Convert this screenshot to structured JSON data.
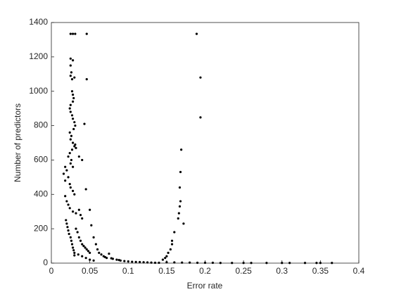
{
  "chart_data": {
    "type": "scatter",
    "xlabel": "Error rate",
    "ylabel": "Number of predictors",
    "color": "#000000",
    "xlim": [
      0,
      0.4
    ],
    "ylim": [
      0,
      1400
    ],
    "xticks": [
      0,
      0.05,
      0.1,
      0.15,
      0.2,
      0.25,
      0.3,
      0.35,
      0.4
    ],
    "yticks": [
      0,
      200,
      400,
      600,
      800,
      1000,
      1200,
      1400
    ],
    "x": [
      0.025,
      0.028,
      0.031,
      0.046,
      0.189,
      0.194,
      0.194,
      0.025,
      0.025,
      0.026,
      0.025,
      0.027,
      0.028,
      0.03,
      0.046,
      0.027,
      0.028,
      0.029,
      0.028,
      0.025,
      0.024,
      0.025,
      0.027,
      0.028,
      0.03,
      0.031,
      0.043,
      0.029,
      0.024,
      0.026,
      0.025,
      0.028,
      0.03,
      0.031,
      0.032,
      0.027,
      0.024,
      0.022,
      0.026,
      0.036,
      0.04,
      0.025,
      0.028,
      0.018,
      0.02,
      0.016,
      0.022,
      0.018,
      0.024,
      0.025,
      0.028,
      0.03,
      0.045,
      0.018,
      0.02,
      0.022,
      0.024,
      0.028,
      0.032,
      0.036,
      0.05,
      0.038,
      0.04,
      0.019,
      0.02,
      0.021,
      0.022,
      0.023,
      0.025,
      0.026,
      0.027,
      0.028,
      0.029,
      0.03,
      0.032,
      0.034,
      0.036,
      0.038,
      0.04,
      0.042,
      0.044,
      0.046,
      0.048,
      0.05,
      0.052,
      0.055,
      0.058,
      0.06,
      0.062,
      0.065,
      0.068,
      0.07,
      0.072,
      0.075,
      0.078,
      0.08,
      0.085,
      0.088,
      0.09,
      0.095,
      0.1,
      0.105,
      0.11,
      0.115,
      0.12,
      0.125,
      0.13,
      0.135,
      0.14,
      0.145,
      0.148,
      0.15,
      0.152,
      0.155,
      0.157,
      0.157,
      0.16,
      0.165,
      0.166,
      0.167,
      0.168,
      0.167,
      0.168,
      0.169,
      0.172,
      0.15,
      0.16,
      0.17,
      0.18,
      0.19,
      0.2,
      0.21,
      0.22,
      0.235,
      0.25,
      0.26,
      0.28,
      0.3,
      0.31,
      0.33,
      0.345,
      0.35,
      0.365,
      0.04,
      0.045,
      0.05,
      0.055,
      0.035,
      0.03
    ],
    "y": [
      1334,
      1334,
      1334,
      1334,
      1334,
      1080,
      848,
      1190,
      1150,
      1110,
      1090,
      1070,
      1180,
      1080,
      1070,
      1000,
      980,
      960,
      940,
      920,
      900,
      880,
      860,
      840,
      820,
      800,
      810,
      780,
      760,
      740,
      720,
      700,
      680,
      690,
      670,
      660,
      640,
      620,
      600,
      620,
      600,
      580,
      560,
      560,
      540,
      520,
      500,
      480,
      460,
      440,
      420,
      400,
      430,
      390,
      360,
      340,
      320,
      300,
      290,
      310,
      310,
      280,
      260,
      250,
      230,
      210,
      190,
      170,
      150,
      130,
      110,
      90,
      75,
      60,
      200,
      180,
      150,
      130,
      110,
      100,
      90,
      80,
      70,
      60,
      220,
      150,
      110,
      80,
      60,
      50,
      40,
      35,
      30,
      55,
      28,
      25,
      20,
      18,
      15,
      12,
      10,
      8,
      7,
      6,
      5,
      4,
      3,
      2,
      2,
      20,
      30,
      40,
      60,
      80,
      110,
      130,
      180,
      260,
      290,
      330,
      360,
      440,
      530,
      660,
      230,
      5,
      4,
      3,
      3,
      2,
      2,
      2,
      1,
      1,
      1,
      1,
      1,
      1,
      1,
      1,
      1,
      1,
      1,
      40,
      30,
      20,
      15,
      50,
      45
    ]
  }
}
